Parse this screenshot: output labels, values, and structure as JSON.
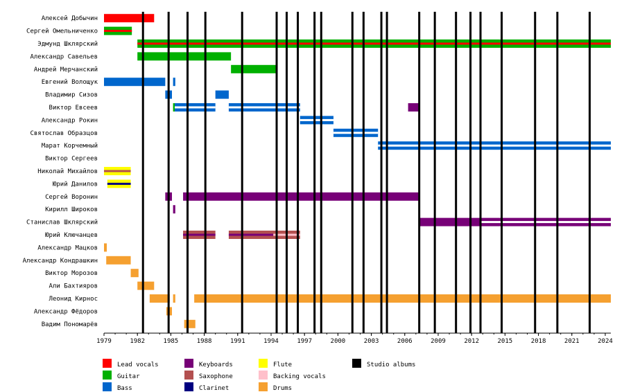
{
  "chart_data": {
    "type": "timeline",
    "x_range": [
      1979,
      2024.5
    ],
    "x_ticks": [
      "1979",
      "1982",
      "1985",
      "1988",
      "1991",
      "1994",
      "1997",
      "2000",
      "2003",
      "2006",
      "2009",
      "2012",
      "2015",
      "2018",
      "2021",
      "2024"
    ],
    "colors": {
      "lead": "#ff0000",
      "guitar": "#00b000",
      "bass": "#0066cc",
      "keyboards": "#770077",
      "saxophone": "#b35050",
      "clarinet": "#000080",
      "flute": "#ffff00",
      "backing": "#ffc0cb",
      "drums": "#f5a030",
      "albums": "#000000",
      "white": "#ffffff"
    },
    "members": [
      {
        "name": "Алексей Добычин",
        "bars": [
          {
            "s": 1979,
            "e": 1983.5,
            "c": "lead"
          }
        ]
      },
      {
        "name": "Сергей Омельниченко",
        "bars": [
          {
            "s": 1979,
            "e": 1981.5,
            "c": "guitar"
          },
          {
            "s": 1979,
            "e": 1981.5,
            "c": "lead",
            "t": "stripe"
          }
        ]
      },
      {
        "name": "Эдмунд Шклярский",
        "bars": [
          {
            "s": 1982,
            "e": 2024.5,
            "c": "guitar"
          },
          {
            "s": 1982,
            "e": 2024.5,
            "c": "lead",
            "t": "stripe"
          }
        ]
      },
      {
        "name": "Александр Савельев",
        "bars": [
          {
            "s": 1982,
            "e": 1990.4,
            "c": "guitar"
          }
        ]
      },
      {
        "name": "Андрей Мерчанский",
        "bars": [
          {
            "s": 1990.4,
            "e": 1994.5,
            "c": "guitar"
          }
        ]
      },
      {
        "name": "Евгений Волощук",
        "bars": [
          {
            "s": 1979,
            "e": 1984.5,
            "c": "bass"
          },
          {
            "s": 1985.2,
            "e": 1985.4,
            "c": "bass"
          }
        ]
      },
      {
        "name": "Владимир Сизов",
        "bars": [
          {
            "s": 1984.5,
            "e": 1985.1,
            "c": "bass"
          },
          {
            "s": 1989,
            "e": 1990.2,
            "c": "bass"
          }
        ]
      },
      {
        "name": "Виктор Евсеев",
        "bars": [
          {
            "s": 1985.2,
            "e": 1985.35,
            "c": "guitar"
          },
          {
            "s": 1985.35,
            "e": 1989,
            "c": "bass"
          },
          {
            "s": 1985.35,
            "e": 1989,
            "c": "white",
            "t": "stripe"
          },
          {
            "s": 1990.2,
            "e": 1996.6,
            "c": "bass"
          },
          {
            "s": 1990.2,
            "e": 1996.6,
            "c": "white",
            "t": "stripe"
          },
          {
            "s": 2006.3,
            "e": 2007.3,
            "c": "keyboards"
          }
        ]
      },
      {
        "name": "Александр Рокин",
        "bars": [
          {
            "s": 1996.6,
            "e": 1999.6,
            "c": "bass"
          },
          {
            "s": 1996.6,
            "e": 1999.6,
            "c": "white",
            "t": "stripe"
          }
        ]
      },
      {
        "name": "Святослав Образцов",
        "bars": [
          {
            "s": 1999.6,
            "e": 2003.6,
            "c": "bass"
          },
          {
            "s": 1999.6,
            "e": 2003.6,
            "c": "white",
            "t": "stripe"
          }
        ]
      },
      {
        "name": "Марат Корчемный",
        "bars": [
          {
            "s": 2003.6,
            "e": 2024.5,
            "c": "bass"
          },
          {
            "s": 2003.6,
            "e": 2024.5,
            "c": "white",
            "t": "stripe"
          }
        ]
      },
      {
        "name": "Виктор Сергеев",
        "bars": []
      },
      {
        "name": "Николай Михайлов",
        "bars": [
          {
            "s": 1979,
            "e": 1981.4,
            "c": "flute"
          },
          {
            "s": 1979,
            "e": 1981.4,
            "c": "saxophone",
            "t": "stripe"
          }
        ]
      },
      {
        "name": "Юрий Данилов",
        "bars": [
          {
            "s": 1979.3,
            "e": 1981.4,
            "c": "flute"
          },
          {
            "s": 1979.3,
            "e": 1981.4,
            "c": "clarinet",
            "t": "stripe"
          }
        ]
      },
      {
        "name": "Сергей Воронин",
        "bars": [
          {
            "s": 1984.5,
            "e": 1985.1,
            "c": "keyboards"
          },
          {
            "s": 1986.1,
            "e": 2007.3,
            "c": "keyboards"
          }
        ]
      },
      {
        "name": "Кирилл Широков",
        "bars": [
          {
            "s": 1985.2,
            "e": 1985.4,
            "c": "keyboards"
          }
        ]
      },
      {
        "name": "Станислав Шклярский",
        "bars": [
          {
            "s": 2007.3,
            "e": 2024.5,
            "c": "keyboards"
          },
          {
            "s": 2012.8,
            "e": 2024.5,
            "c": "white",
            "t": "stripe"
          }
        ]
      },
      {
        "name": "Юрий Ключанцев",
        "bars": [
          {
            "s": 1986.1,
            "e": 1989,
            "c": "saxophone"
          },
          {
            "s": 1986.1,
            "e": 1989,
            "c": "keyboards",
            "t": "stripe"
          },
          {
            "s": 1990.2,
            "e": 1996.6,
            "c": "saxophone"
          },
          {
            "s": 1990.2,
            "e": 1994.2,
            "c": "keyboards",
            "t": "stripe"
          },
          {
            "s": 1994.2,
            "e": 1996.6,
            "c": "backing",
            "t": "stripe"
          }
        ]
      },
      {
        "name": "Александр Мацков",
        "bars": [
          {
            "s": 1979,
            "e": 1979.25,
            "c": "drums"
          }
        ]
      },
      {
        "name": "Александр Кондрашкин",
        "bars": [
          {
            "s": 1979.2,
            "e": 1981.4,
            "c": "drums"
          }
        ]
      },
      {
        "name": "Виктор Морозов",
        "bars": [
          {
            "s": 1981.4,
            "e": 1982.1,
            "c": "drums"
          }
        ]
      },
      {
        "name": "Али Бахтияров",
        "bars": [
          {
            "s": 1982,
            "e": 1983.5,
            "c": "drums"
          }
        ]
      },
      {
        "name": "Леонид Кирнос",
        "bars": [
          {
            "s": 1983.1,
            "e": 1984.9,
            "c": "drums"
          },
          {
            "s": 1985.2,
            "e": 1985.4,
            "c": "drums"
          },
          {
            "s": 1987.1,
            "e": 2024.5,
            "c": "drums"
          }
        ]
      },
      {
        "name": "Александр Фёдоров",
        "bars": [
          {
            "s": 1984.6,
            "e": 1985.1,
            "c": "drums"
          }
        ]
      },
      {
        "name": "Вадим Пономарёв",
        "bars": [
          {
            "s": 1986.2,
            "e": 1987.2,
            "c": "drums"
          }
        ]
      }
    ],
    "albums": [
      1982.5,
      1984.8,
      1986.5,
      1988.1,
      1991.4,
      1994.5,
      1995.4,
      1996.4,
      1997.9,
      1998.5,
      2001.3,
      2002.3,
      2003.9,
      2004.4,
      2007.3,
      2008.7,
      2010.6,
      2011.9,
      2012.8,
      2014.7,
      2017.7,
      2019.7,
      2022.6
    ],
    "legend": [
      {
        "label": "Lead vocals",
        "color": "lead"
      },
      {
        "label": "Guitar",
        "color": "guitar"
      },
      {
        "label": "Bass",
        "color": "bass"
      },
      {
        "label": "Keyboards",
        "color": "keyboards"
      },
      {
        "label": "Saxophone",
        "color": "saxophone"
      },
      {
        "label": "Clarinet",
        "color": "clarinet"
      },
      {
        "label": "Flute",
        "color": "flute"
      },
      {
        "label": "Backing vocals",
        "color": "backing"
      },
      {
        "label": "Drums",
        "color": "drums"
      },
      {
        "label": "Studio albums",
        "color": "albums"
      }
    ]
  }
}
